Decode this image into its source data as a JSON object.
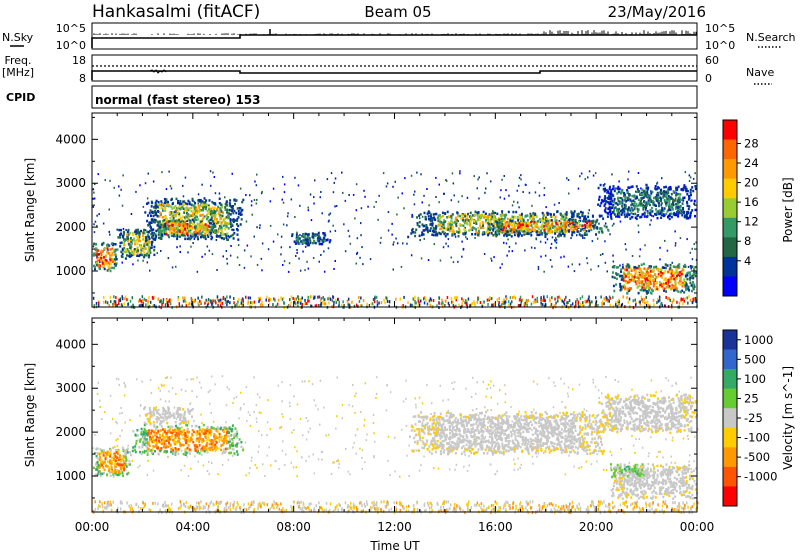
{
  "header": {
    "station": "Hankasalmi (fitACF)",
    "beam": "Beam 05",
    "date": "23/May/2016"
  },
  "nsky_panel": {
    "left_label": "N.Sky",
    "left_ticks": [
      "10^5",
      "10^0"
    ],
    "right_label": "N.Search",
    "right_ticks": [
      "10^5",
      "10^0"
    ]
  },
  "freq_panel": {
    "left_label_line1": "Freq.",
    "left_label_line2": "[MHz]",
    "left_ticks": [
      "18",
      "8"
    ],
    "right_label": "Nave",
    "right_ticks": [
      "60",
      "0"
    ]
  },
  "cpid_panel": {
    "label": "CPID",
    "text": "normal (fast stereo) 153"
  },
  "time_axis": {
    "label": "Time UT",
    "ticks": [
      "00:00",
      "04:00",
      "08:00",
      "12:00",
      "16:00",
      "20:00",
      "00:00"
    ]
  },
  "power_colorbar": {
    "label": "Power [dB]",
    "ticks": [
      "28",
      "24",
      "20",
      "16",
      "12",
      "8",
      "4"
    ],
    "colors": [
      "#ff0000",
      "#ff6600",
      "#ff9900",
      "#ffcc00",
      "#99cc33",
      "#339966",
      "#226644",
      "#003399",
      "#0000ff"
    ]
  },
  "velocity_colorbar": {
    "label": "Velocity [m s^-1]",
    "ticks": [
      "1000",
      "500",
      "100",
      "25",
      "-25",
      "-100",
      "-500",
      "-1000"
    ],
    "colors": [
      "#1a3399",
      "#3366cc",
      "#33aa66",
      "#66cc33",
      "#c8c8c8",
      "#ffcc00",
      "#ff9900",
      "#ff5500",
      "#ff0000"
    ]
  },
  "chart_data": [
    {
      "type": "heatmap",
      "title": "Power",
      "ylabel": "Slant Range [km]",
      "xlabel": "Time UT",
      "x_range_hours": [
        0,
        24
      ],
      "ylim": [
        180,
        4600
      ],
      "y_ticks": [
        1000,
        2000,
        3000,
        4000
      ],
      "regions": [
        {
          "t0": 0.0,
          "t1": 1.0,
          "r0": 1000,
          "r1": 1700,
          "level": "high"
        },
        {
          "t0": 1.0,
          "t1": 2.5,
          "r0": 1300,
          "r1": 2000,
          "level": "mid"
        },
        {
          "t0": 2.0,
          "t1": 6.0,
          "r0": 1700,
          "r1": 2700,
          "level": "mid"
        },
        {
          "t0": 2.5,
          "t1": 5.0,
          "r0": 1800,
          "r1": 2200,
          "level": "high"
        },
        {
          "t0": 7.8,
          "t1": 9.5,
          "r0": 1600,
          "r1": 1900,
          "level": "low"
        },
        {
          "t0": 12.5,
          "t1": 20.0,
          "r0": 1800,
          "r1": 2400,
          "level": "mid"
        },
        {
          "t0": 15.5,
          "t1": 20.5,
          "r0": 1900,
          "r1": 2200,
          "level": "high"
        },
        {
          "t0": 20.0,
          "t1": 24.0,
          "r0": 2200,
          "r1": 3000,
          "level": "low"
        },
        {
          "t0": 20.5,
          "t1": 24.0,
          "r0": 500,
          "r1": 1200,
          "level": "high"
        }
      ]
    },
    {
      "type": "heatmap",
      "title": "Velocity",
      "ylabel": "Slant Range [km]",
      "xlabel": "Time UT",
      "x_range_hours": [
        0,
        24
      ],
      "ylim": [
        180,
        4600
      ],
      "y_ticks": [
        1000,
        2000,
        3000,
        4000
      ],
      "regions": [
        {
          "t0": 0.0,
          "t1": 1.5,
          "r0": 1000,
          "r1": 1700,
          "level": "neg_high"
        },
        {
          "t0": 1.5,
          "t1": 6.0,
          "r0": 1500,
          "r1": 2200,
          "level": "neg_high"
        },
        {
          "t0": 2.0,
          "t1": 4.0,
          "r0": 2200,
          "r1": 2600,
          "level": "neutral"
        },
        {
          "t0": 12.5,
          "t1": 20.5,
          "r0": 1500,
          "r1": 2500,
          "level": "neutral"
        },
        {
          "t0": 20.0,
          "t1": 24.0,
          "r0": 2000,
          "r1": 2900,
          "level": "neutral"
        },
        {
          "t0": 20.5,
          "t1": 24.0,
          "r0": 500,
          "r1": 1300,
          "level": "neutral"
        },
        {
          "t0": 20.5,
          "t1": 22.0,
          "r0": 1000,
          "r1": 1300,
          "level": "pos_low"
        }
      ]
    }
  ]
}
